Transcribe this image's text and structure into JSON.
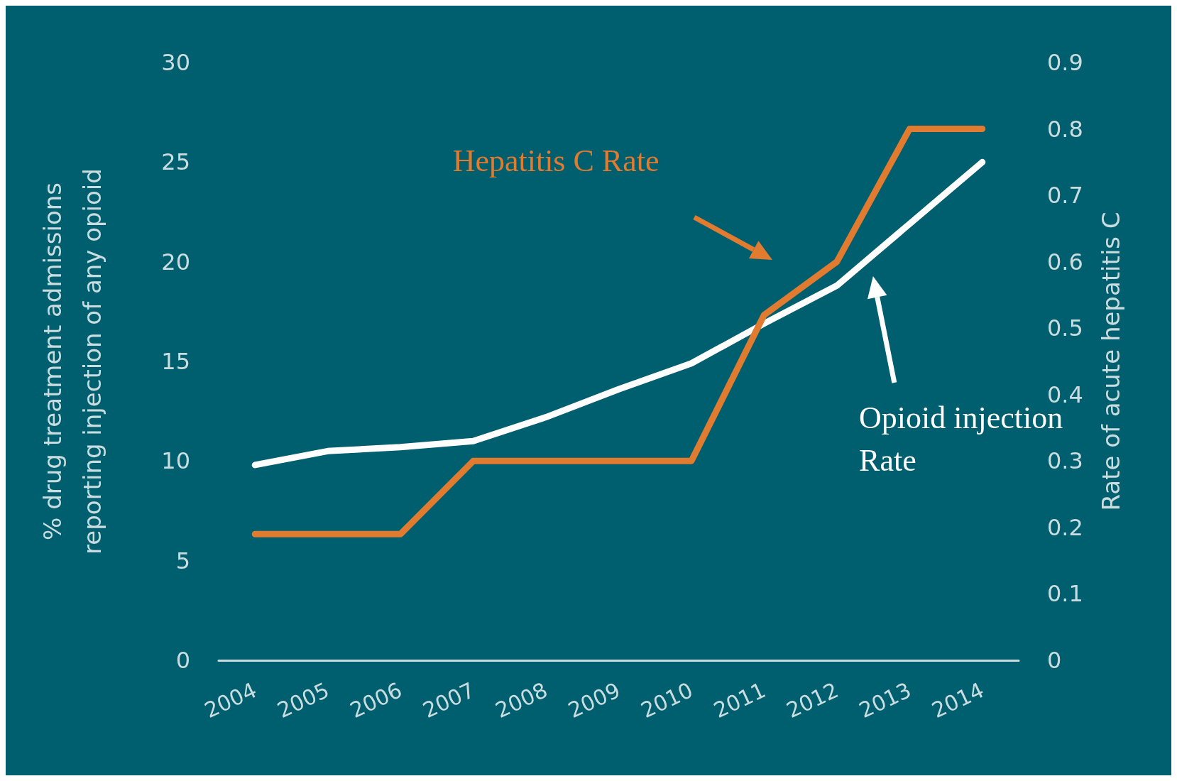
{
  "chart_data": {
    "type": "line",
    "categories": [
      "2004",
      "2005",
      "2006",
      "2007",
      "2008",
      "2009",
      "2010",
      "2011",
      "2012",
      "2013",
      "2014"
    ],
    "ylabel": "% drug treatment admissions\nreporting injection of any opioid",
    "y2label": "Rate of acute hepatitis C",
    "ylim": [
      0,
      30
    ],
    "yticks": [
      0,
      5,
      10,
      15,
      20,
      25,
      30
    ],
    "y2lim": [
      0,
      0.9
    ],
    "y2ticks": [
      0,
      0.1,
      0.2,
      0.3,
      0.4,
      0.5,
      0.6,
      0.7,
      0.8,
      0.9
    ],
    "grid": false,
    "legend": false,
    "marker": "none",
    "line_style": "solid",
    "series": [
      {
        "name": "Opioid injection Rate",
        "color": "#ffffff",
        "values": [
          9.8,
          10.5,
          10.7,
          11.0,
          12.2,
          13.6,
          14.9,
          16.9,
          18.8,
          21.9,
          25.0
        ]
      },
      {
        "name": "Hepatitis C Rate",
        "color": "#e07b30",
        "axis": "y2",
        "values": [
          0.19,
          0.19,
          0.19,
          0.3,
          0.3,
          0.3,
          0.3,
          0.52,
          0.6,
          0.8,
          0.8
        ]
      }
    ]
  }
}
